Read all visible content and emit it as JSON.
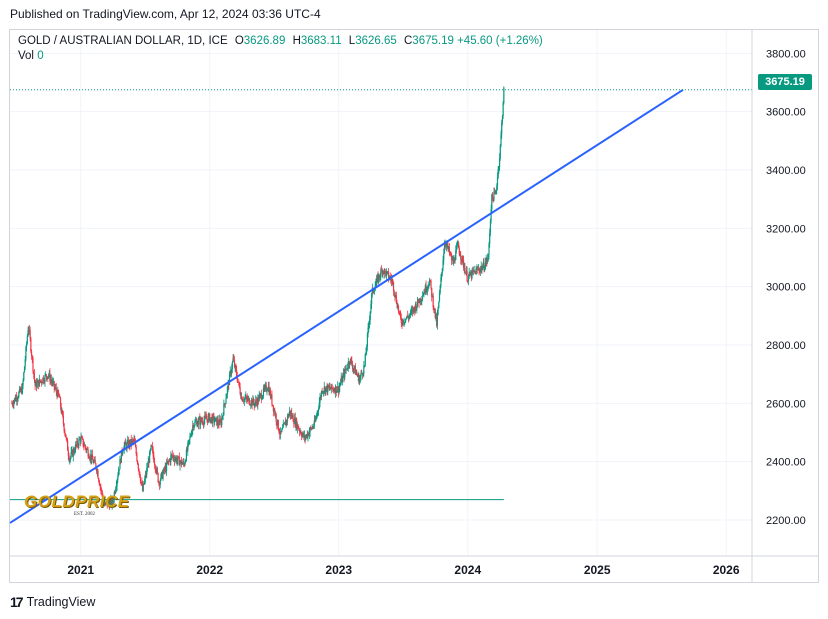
{
  "published": "Published on TradingView.com, Apr 12, 2024 03:36 UTC-4",
  "legend": {
    "symbol": "GOLD / AUSTRALIAN DOLLAR, 1D, ICE",
    "o_label": "O",
    "o_value": "3626.89",
    "h_label": "H",
    "h_value": "3683.11",
    "l_label": "L",
    "l_value": "3626.65",
    "c_label": "C",
    "c_value": "3675.19",
    "change": "+45.60 (+1.26%)",
    "vol_label": "Vol",
    "vol_value": "0"
  },
  "last_price_badge": "3675.19",
  "footer": {
    "brand": "TradingView",
    "icon": "tradingview-logo-icon"
  },
  "watermark": {
    "text": "GOLDPRICE",
    "sub": "EST. 2002"
  },
  "colors": {
    "up": "#089981",
    "down": "#f23645",
    "trendline": "#2962ff",
    "hline": "#089981",
    "grid": "#f0f3fa"
  },
  "chart_data": {
    "type": "candlestick",
    "x_range": [
      "2020-06-15",
      "2026-03-15"
    ],
    "y_range": [
      2080,
      3880
    ],
    "x_ticks": [
      "2021",
      "2022",
      "2023",
      "2024",
      "2025",
      "2026"
    ],
    "y_ticks": [
      "3800.00",
      "3600.00",
      "3400.00",
      "3200.00",
      "3000.00",
      "2800.00",
      "2600.00",
      "2400.00",
      "2200.00"
    ],
    "grid": true,
    "last_close": 3675.19,
    "trendline": {
      "start": [
        "2020-06-15",
        2190
      ],
      "end": [
        "2025-09-01",
        3675
      ]
    },
    "horizontal_line": {
      "value": 2270,
      "from": "2020-06-15",
      "to": "2024-04-12"
    },
    "price_path": [
      [
        "2020-06-20",
        2600
      ],
      [
        "2020-07-20",
        2650
      ],
      [
        "2020-08-06",
        2870
      ],
      [
        "2020-08-25",
        2660
      ],
      [
        "2020-10-01",
        2700
      ],
      [
        "2020-11-01",
        2620
      ],
      [
        "2020-11-30",
        2410
      ],
      [
        "2020-12-31",
        2480
      ],
      [
        "2021-02-15",
        2380
      ],
      [
        "2021-03-08",
        2250
      ],
      [
        "2021-04-01",
        2260
      ],
      [
        "2021-04-30",
        2450
      ],
      [
        "2021-06-01",
        2470
      ],
      [
        "2021-06-25",
        2300
      ],
      [
        "2021-07-20",
        2450
      ],
      [
        "2021-08-10",
        2330
      ],
      [
        "2021-09-15",
        2420
      ],
      [
        "2021-10-20",
        2390
      ],
      [
        "2021-11-15",
        2530
      ],
      [
        "2021-12-31",
        2550
      ],
      [
        "2022-02-01",
        2530
      ],
      [
        "2022-03-08",
        2750
      ],
      [
        "2022-04-01",
        2620
      ],
      [
        "2022-05-10",
        2600
      ],
      [
        "2022-06-15",
        2660
      ],
      [
        "2022-07-20",
        2490
      ],
      [
        "2022-08-15",
        2570
      ],
      [
        "2022-09-26",
        2480
      ],
      [
        "2022-10-25",
        2530
      ],
      [
        "2022-11-15",
        2650
      ],
      [
        "2022-12-31",
        2650
      ],
      [
        "2023-02-01",
        2750
      ],
      [
        "2023-02-28",
        2680
      ],
      [
        "2023-03-15",
        2730
      ],
      [
        "2023-04-05",
        2980
      ],
      [
        "2023-05-04",
        3060
      ],
      [
        "2023-06-01",
        3020
      ],
      [
        "2023-06-26",
        2880
      ],
      [
        "2023-07-20",
        2900
      ],
      [
        "2023-08-20",
        2960
      ],
      [
        "2023-09-15",
        3020
      ],
      [
        "2023-10-05",
        2870
      ],
      [
        "2023-10-28",
        3160
      ],
      [
        "2023-11-20",
        3080
      ],
      [
        "2023-12-04",
        3140
      ],
      [
        "2023-12-31",
        3030
      ],
      [
        "2024-01-20",
        3050
      ],
      [
        "2024-02-15",
        3070
      ],
      [
        "2024-02-28",
        3100
      ],
      [
        "2024-03-08",
        3300
      ],
      [
        "2024-03-20",
        3320
      ],
      [
        "2024-04-01",
        3460
      ],
      [
        "2024-04-12",
        3675
      ]
    ]
  }
}
